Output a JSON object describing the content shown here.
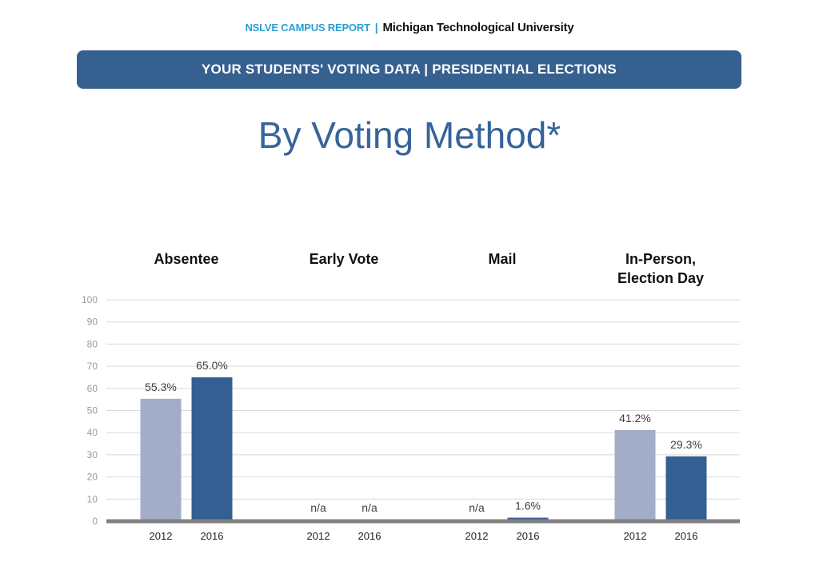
{
  "header": {
    "report_label": "NSLVE CAMPUS REPORT",
    "separator": "|",
    "university": "Michigan Technological University",
    "banner": "YOUR STUDENTS' VOTING DATA | PRESIDENTIAL ELECTIONS",
    "title": "By Voting Method*"
  },
  "colors": {
    "brand_blue": "#35608f",
    "accent_cyan": "#2a9fd0",
    "title_blue": "#36649a",
    "bar_2012": "#a3adc9",
    "bar_2016": "#345f92",
    "baseline": "#808080",
    "grid": "#d9d9d9"
  },
  "chart_data": {
    "type": "bar",
    "ylim": [
      0,
      100
    ],
    "yticks": [
      "0",
      "10",
      "20",
      "30",
      "40",
      "50",
      "60",
      "70",
      "80",
      "90",
      "100"
    ],
    "series_names": [
      "2012",
      "2016"
    ],
    "groups": [
      {
        "title": [
          "Absentee"
        ],
        "bars": [
          {
            "year": "2012",
            "value": 55.3,
            "label": "55.3%"
          },
          {
            "year": "2016",
            "value": 65.0,
            "label": "65.0%"
          }
        ]
      },
      {
        "title": [
          "Early Vote"
        ],
        "bars": [
          {
            "year": "2012",
            "value": null,
            "label": "n/a"
          },
          {
            "year": "2016",
            "value": null,
            "label": "n/a"
          }
        ]
      },
      {
        "title": [
          "Mail"
        ],
        "bars": [
          {
            "year": "2012",
            "value": null,
            "label": "n/a"
          },
          {
            "year": "2016",
            "value": 1.6,
            "label": "1.6%"
          }
        ]
      },
      {
        "title": [
          "In-Person,",
          "Election Day"
        ],
        "bars": [
          {
            "year": "2012",
            "value": 41.2,
            "label": "41.2%"
          },
          {
            "year": "2016",
            "value": 29.3,
            "label": "29.3%"
          }
        ]
      }
    ]
  }
}
